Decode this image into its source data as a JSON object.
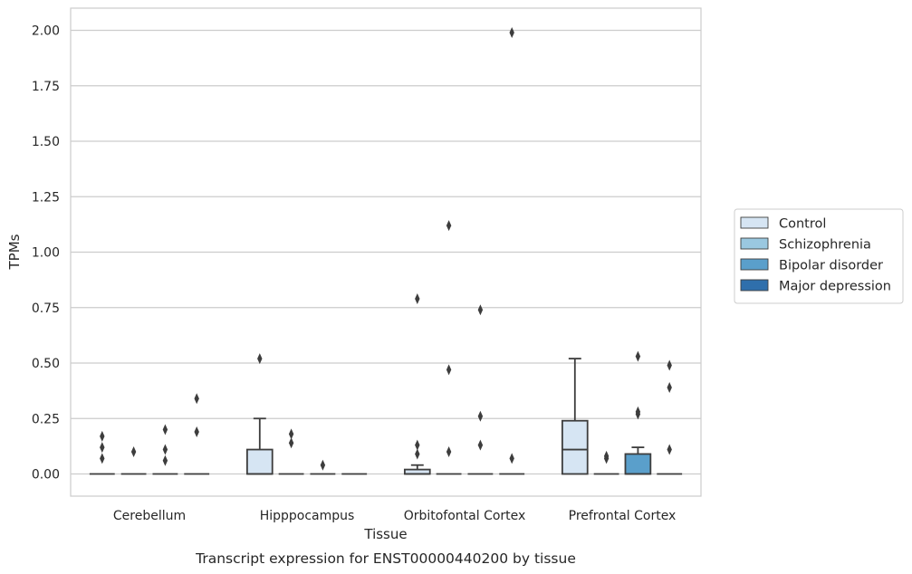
{
  "chart_data": {
    "type": "box",
    "title": "",
    "caption": "Transcript expression for ENST00000440200 by tissue",
    "xlabel": "Tissue",
    "ylabel": "TPMs",
    "ylim": [
      -0.1,
      2.1
    ],
    "yticks": [
      "0.00",
      "0.25",
      "0.50",
      "0.75",
      "1.00",
      "1.25",
      "1.50",
      "1.75",
      "2.00"
    ],
    "ytick_values": [
      0,
      0.25,
      0.5,
      0.75,
      1.0,
      1.25,
      1.5,
      1.75,
      2.0
    ],
    "grid": "horizontal",
    "legend_position": "right",
    "categories": [
      "Cerebellum",
      "Hipppocampus",
      "Orbitofontal Cortex",
      "Prefrontal Cortex"
    ],
    "series": [
      {
        "name": "Control",
        "color": "#d6e5f3",
        "boxes": [
          {
            "q1": 0,
            "median": 0,
            "q3": 0,
            "whisker_low": 0,
            "whisker_high": 0,
            "outliers": [
              0.17,
              0.12,
              0.07
            ]
          },
          {
            "q1": 0,
            "median": 0,
            "q3": 0.11,
            "whisker_low": 0,
            "whisker_high": 0.25,
            "outliers": [
              0.52
            ]
          },
          {
            "q1": 0,
            "median": 0,
            "q3": 0.02,
            "whisker_low": 0,
            "whisker_high": 0.04,
            "outliers": [
              0.79,
              0.13,
              0.09
            ]
          },
          {
            "q1": 0,
            "median": 0.11,
            "q3": 0.24,
            "whisker_low": 0,
            "whisker_high": 0.52,
            "outliers": []
          }
        ]
      },
      {
        "name": "Schizophrenia",
        "color": "#9ac8e0",
        "boxes": [
          {
            "q1": 0,
            "median": 0,
            "q3": 0,
            "whisker_low": 0,
            "whisker_high": 0,
            "outliers": [
              0.1
            ]
          },
          {
            "q1": 0,
            "median": 0,
            "q3": 0,
            "whisker_low": 0,
            "whisker_high": 0,
            "outliers": [
              0.18,
              0.14
            ]
          },
          {
            "q1": 0,
            "median": 0,
            "q3": 0,
            "whisker_low": 0,
            "whisker_high": 0,
            "outliers": [
              1.12,
              0.47,
              0.1
            ]
          },
          {
            "q1": 0,
            "median": 0,
            "q3": 0,
            "whisker_low": 0,
            "whisker_high": 0,
            "outliers": [
              0.08,
              0.07
            ]
          }
        ]
      },
      {
        "name": "Bipolar disorder",
        "color": "#5a9fcb",
        "boxes": [
          {
            "q1": 0,
            "median": 0,
            "q3": 0,
            "whisker_low": 0,
            "whisker_high": 0,
            "outliers": [
              0.2,
              0.11,
              0.06
            ]
          },
          {
            "q1": 0,
            "median": 0,
            "q3": 0,
            "whisker_low": 0,
            "whisker_high": 0,
            "outliers": [
              0.04
            ]
          },
          {
            "q1": 0,
            "median": 0,
            "q3": 0,
            "whisker_low": 0,
            "whisker_high": 0,
            "outliers": [
              0.74,
              0.26,
              0.13
            ]
          },
          {
            "q1": 0,
            "median": 0,
            "q3": 0.09,
            "whisker_low": 0,
            "whisker_high": 0.12,
            "outliers": [
              0.53,
              0.28,
              0.27
            ]
          }
        ]
      },
      {
        "name": "Major depression",
        "color": "#2f6fac",
        "boxes": [
          {
            "q1": 0,
            "median": 0,
            "q3": 0,
            "whisker_low": 0,
            "whisker_high": 0,
            "outliers": [
              0.34,
              0.19
            ]
          },
          {
            "q1": 0,
            "median": 0,
            "q3": 0,
            "whisker_low": 0,
            "whisker_high": 0,
            "outliers": []
          },
          {
            "q1": 0,
            "median": 0,
            "q3": 0,
            "whisker_low": 0,
            "whisker_high": 0,
            "outliers": [
              1.99,
              0.07
            ]
          },
          {
            "q1": 0,
            "median": 0,
            "q3": 0,
            "whisker_low": 0,
            "whisker_high": 0,
            "outliers": [
              0.49,
              0.39,
              0.11
            ]
          }
        ]
      }
    ],
    "colors": {
      "edge": "#3d3d3d",
      "grid": "#cccccc",
      "axes_edge": "#cccccc",
      "background": "#ffffff"
    }
  }
}
